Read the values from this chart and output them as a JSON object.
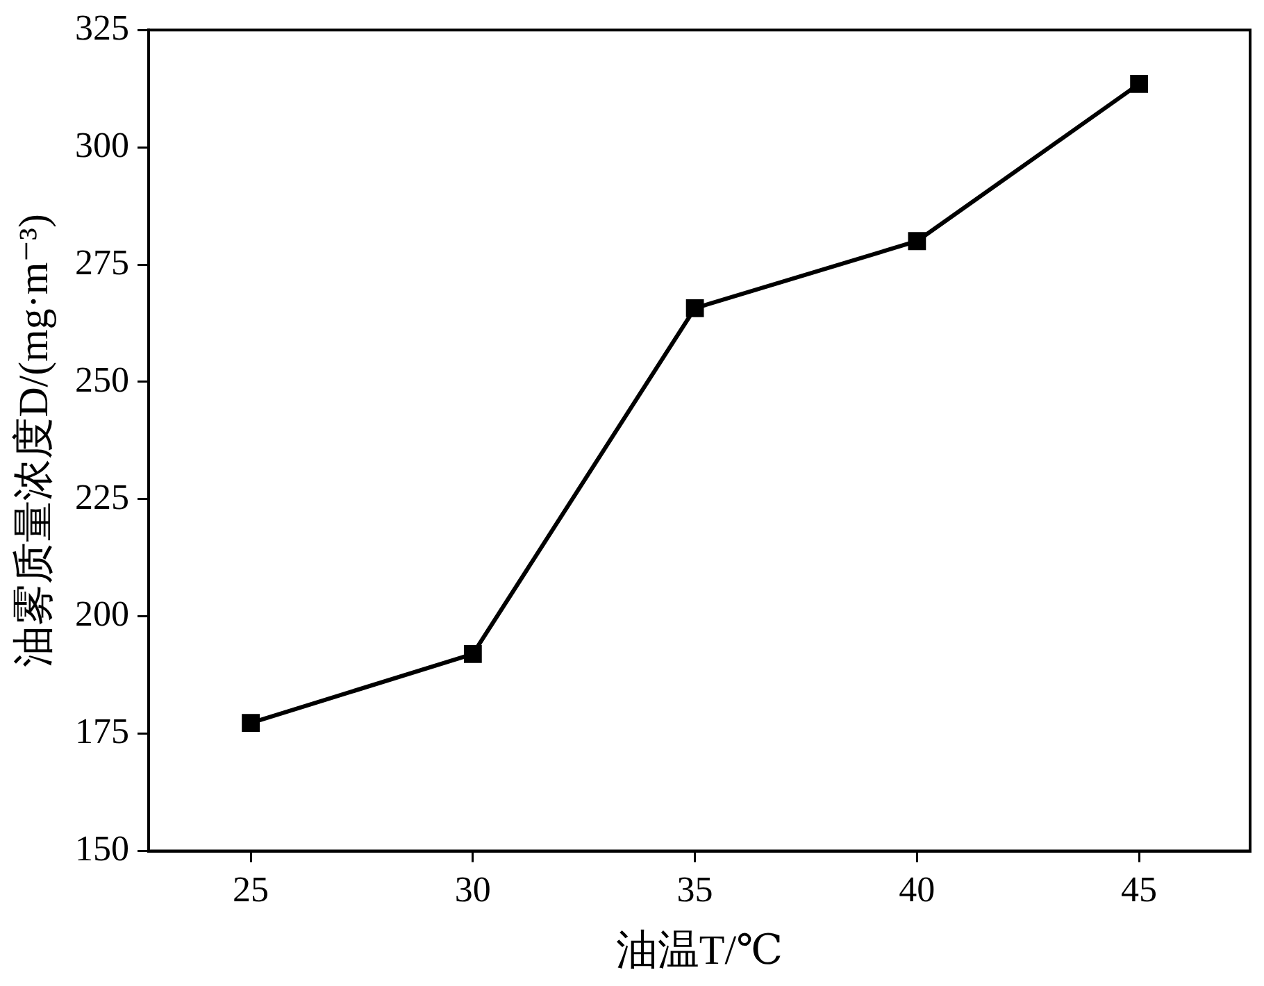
{
  "chart_data": {
    "type": "line",
    "xlabel": "油温T/℃",
    "ylabel": "油雾质量浓度D/(mg·m⁻³)",
    "x": [
      25,
      30,
      35,
      40,
      45
    ],
    "series": [
      {
        "color": "#000000",
        "values": [
          177.3,
          192,
          265.7,
          280,
          313.5
        ]
      }
    ],
    "xlim": [
      22.7,
      47.5
    ],
    "xticks": [
      25,
      30,
      35,
      40,
      45
    ],
    "ylim": [
      150,
      325
    ],
    "yticks": [
      150,
      175,
      200,
      225,
      250,
      275,
      300,
      325
    ],
    "grid": false,
    "legend": false,
    "marker": "square",
    "line_style": "solid"
  }
}
